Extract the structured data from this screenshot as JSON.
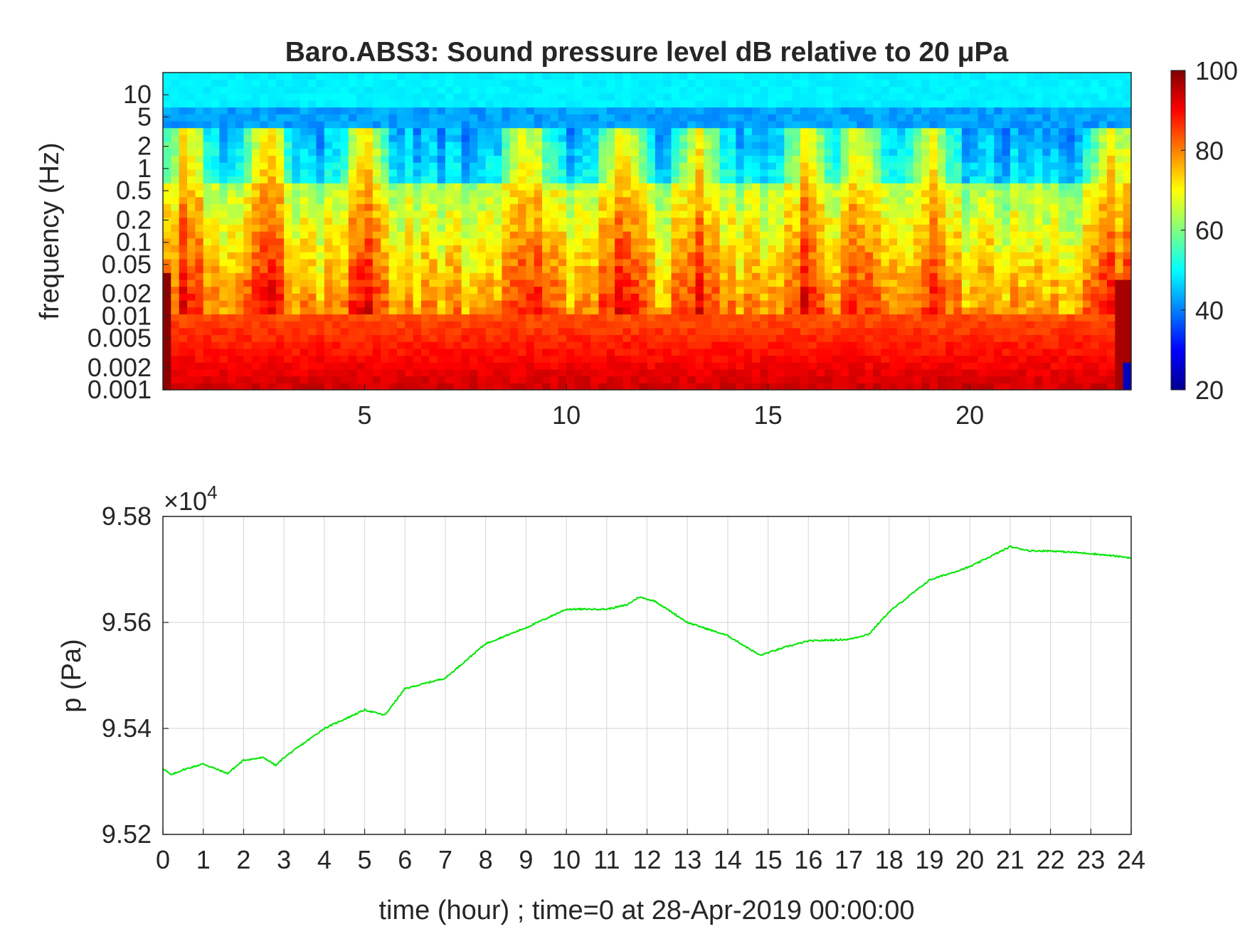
{
  "chart_data": [
    {
      "type": "heatmap",
      "title": "Baro.ABS3: Sound pressure level dB relative to 20 μPa",
      "ylabel": "frequency (Hz)",
      "xlabel": "",
      "x_ticks": [
        5,
        10,
        15,
        20
      ],
      "xlim": [
        0,
        24
      ],
      "y_scale": "log",
      "y_ticks": [
        "0.001",
        "0.002",
        "0.005",
        "0.01",
        "0.02",
        "0.05",
        "0.1",
        "0.2",
        "0.5",
        "1",
        "2",
        "5",
        "10"
      ],
      "y_tick_values": [
        0.001,
        0.002,
        0.005,
        0.01,
        0.02,
        0.05,
        0.1,
        0.2,
        0.5,
        1,
        2,
        5,
        10
      ],
      "ylim": [
        0.001,
        20
      ],
      "colormap": "jet",
      "colorbar": {
        "ticks": [
          "20",
          "40",
          "60",
          "80",
          "100"
        ],
        "range": [
          20,
          100
        ]
      },
      "high_energy_hours": [
        0.6,
        2.6,
        5.0,
        9.0,
        11.4,
        13.3,
        16.0,
        17.3,
        19.0,
        23.6
      ]
    },
    {
      "type": "line",
      "ylabel": "p (Pa)",
      "xlabel": "time (hour) ; time=0 at 28-Apr-2019 00:00:00",
      "y_multiplier": "×10^4",
      "y_multiplier_base": "×10",
      "y_multiplier_exp": "4",
      "xlim": [
        0,
        24
      ],
      "ylim": [
        9.52,
        9.58
      ],
      "x_ticks": [
        "0",
        "1",
        "2",
        "3",
        "4",
        "5",
        "6",
        "7",
        "8",
        "9",
        "10",
        "11",
        "12",
        "13",
        "14",
        "15",
        "16",
        "17",
        "18",
        "19",
        "20",
        "21",
        "22",
        "23",
        "24"
      ],
      "y_ticks": [
        "9.52",
        "9.54",
        "9.56",
        "9.58"
      ],
      "grid": true,
      "color": "#00e600",
      "series": [
        {
          "x": [
            0,
            0.2,
            0.5,
            1.0,
            1.5,
            1.6,
            2.0,
            2.5,
            2.8,
            3.0,
            4.0,
            5.0,
            5.5,
            6.0,
            7.0,
            8.0,
            9.0,
            10.0,
            11.0,
            11.5,
            11.8,
            12.2,
            13.0,
            14.0,
            14.8,
            15.5,
            16.0,
            17.0,
            17.5,
            18.0,
            19.0,
            20.0,
            21.0,
            21.5,
            22.0,
            23.0,
            24.0
          ],
          "y": [
            9.5325,
            9.5312,
            9.5322,
            9.5333,
            9.5318,
            9.5315,
            9.534,
            9.5345,
            9.533,
            9.5345,
            9.54,
            9.5435,
            9.5425,
            9.5475,
            9.5495,
            9.556,
            9.559,
            9.5625,
            9.5625,
            9.5633,
            9.5648,
            9.564,
            9.56,
            9.5575,
            9.5538,
            9.5555,
            9.5565,
            9.5568,
            9.5578,
            9.562,
            9.568,
            9.5705,
            9.5743,
            9.5735,
            9.5735,
            9.573,
            9.5722
          ]
        }
      ]
    }
  ]
}
